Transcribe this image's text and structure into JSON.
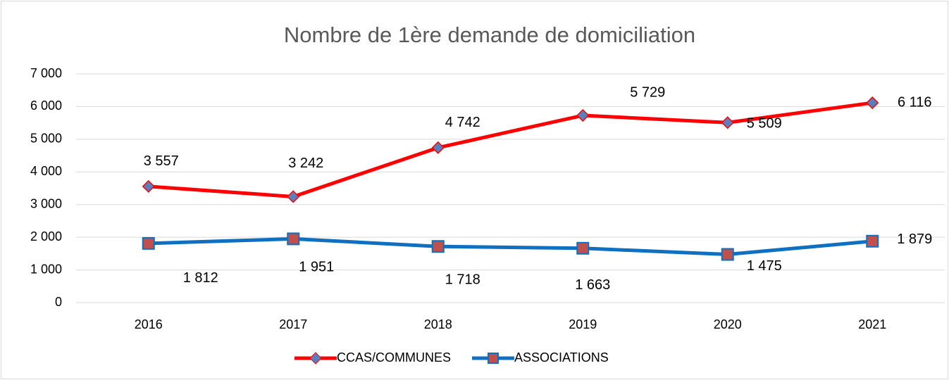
{
  "chart_data": {
    "type": "line",
    "title": "Nombre de 1ère demande de domiciliation",
    "categories": [
      "2016",
      "2017",
      "2018",
      "2019",
      "2020",
      "2021"
    ],
    "series": [
      {
        "name": "CCAS/COMMUNES",
        "color": "#ff0000",
        "marker_color": "#5b7fbd",
        "marker": "diamond",
        "values": [
          3557,
          3242,
          4742,
          5729,
          5509,
          6116
        ],
        "value_labels": [
          "3 557",
          "3 242",
          "4 742",
          "5 729",
          "5 509",
          "6 116"
        ]
      },
      {
        "name": "ASSOCIATIONS",
        "color": "#0f6fc0",
        "marker_color": "#c0504d",
        "marker": "square",
        "values": [
          1812,
          1951,
          1718,
          1663,
          1475,
          1879
        ],
        "value_labels": [
          "1 812",
          "1 951",
          "1 718",
          "1 663",
          "1 475",
          "1 879"
        ]
      }
    ],
    "ylim": [
      0,
      7000
    ],
    "yticks": [
      0,
      {
        "value": 1000,
        "label": "1 000"
      },
      {
        "value": 2000,
        "label": "2 000"
      },
      {
        "value": 3000,
        "label": "3 000"
      },
      {
        "value": 4000,
        "label": "4 000"
      },
      {
        "value": 5000,
        "label": "5 000"
      },
      {
        "value": 6000,
        "label": "6 000"
      },
      {
        "value": 7000,
        "label": "7 000"
      }
    ],
    "grid": true,
    "legend": "bottom"
  }
}
